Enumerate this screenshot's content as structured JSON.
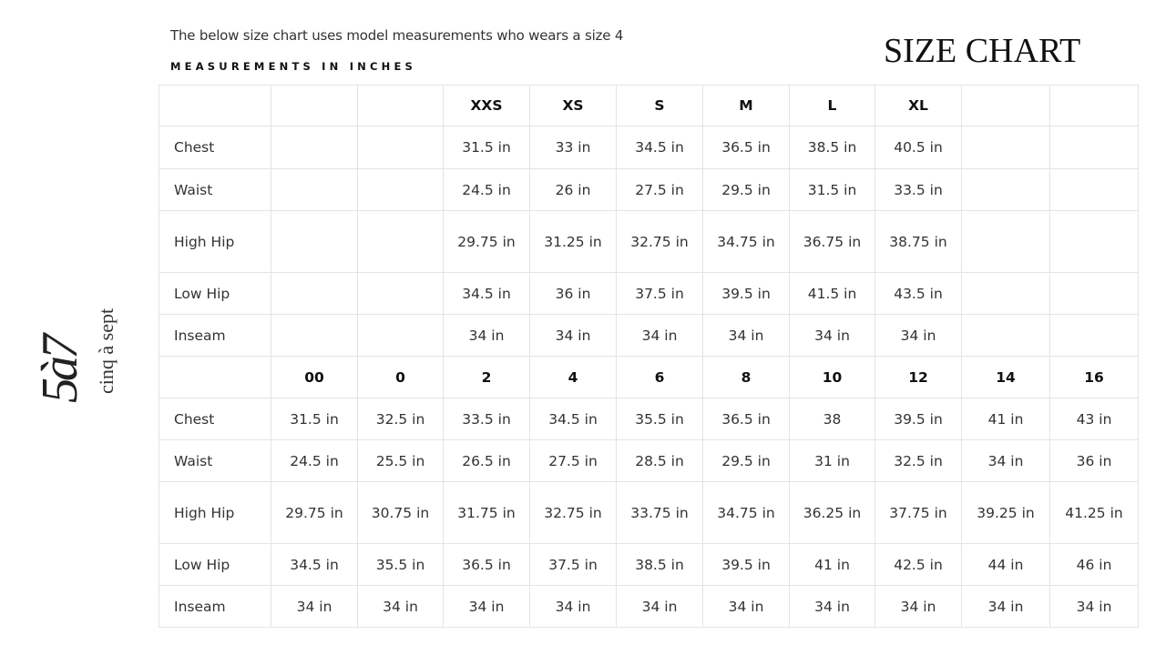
{
  "intro": "The below size chart uses model measurements who wears a size 4",
  "subtitle": "MEASUREMENTS IN INCHES",
  "title": "SIZE CHART",
  "logo": {
    "mark": "5à7",
    "wordmark": "cinq à sept"
  },
  "table": {
    "rows": [
      [
        "",
        "",
        "",
        "XXS",
        "XS",
        "S",
        "M",
        "L",
        "XL",
        "",
        ""
      ],
      [
        "Chest",
        "",
        "",
        "31.5 in",
        "33 in",
        "34.5 in",
        "36.5 in",
        "38.5 in",
        "40.5 in",
        "",
        ""
      ],
      [
        "Waist",
        "",
        "",
        "24.5 in",
        "26 in",
        "27.5 in",
        "29.5 in",
        "31.5 in",
        "33.5 in",
        "",
        ""
      ],
      [
        "High Hip",
        "",
        "",
        "29.75 in",
        "31.25 in",
        "32.75 in",
        "34.75 in",
        "36.75 in",
        "38.75 in",
        "",
        ""
      ],
      [
        "Low Hip",
        "",
        "",
        "34.5 in",
        "36 in",
        "37.5 in",
        "39.5 in",
        "41.5 in",
        "43.5 in",
        "",
        ""
      ],
      [
        "Inseam",
        "",
        "",
        "34 in",
        "34 in",
        "34 in",
        "34 in",
        "34 in",
        "34 in",
        "",
        ""
      ],
      [
        "",
        "00",
        "0",
        "2",
        "4",
        "6",
        "8",
        "10",
        "12",
        "14",
        "16"
      ],
      [
        "Chest",
        "31.5 in",
        "32.5 in",
        "33.5 in",
        "34.5 in",
        "35.5 in",
        "36.5 in",
        "38",
        "39.5 in",
        "41 in",
        "43 in"
      ],
      [
        "Waist",
        "24.5 in",
        "25.5 in",
        "26.5 in",
        "27.5 in",
        "28.5 in",
        "29.5 in",
        "31 in",
        "32.5 in",
        "34 in",
        "36 in"
      ],
      [
        "High Hip",
        "29.75 in",
        "30.75 in",
        "31.75 in",
        "32.75 in",
        "33.75 in",
        "34.75 in",
        "36.25 in",
        "37.75 in",
        "39.25 in",
        "41.25 in"
      ],
      [
        "Low Hip",
        "34.5 in",
        "35.5 in",
        "36.5 in",
        "37.5 in",
        "38.5 in",
        "39.5 in",
        "41 in",
        "42.5 in",
        "44 in",
        "46 in"
      ],
      [
        "Inseam",
        "34 in",
        "34 in",
        "34 in",
        "34 in",
        "34 in",
        "34 in",
        "34 in",
        "34 in",
        "34 in",
        "34 in"
      ]
    ]
  }
}
